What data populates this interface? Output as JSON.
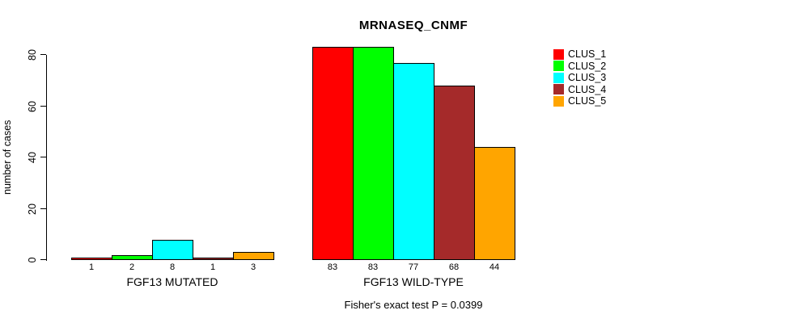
{
  "chart_data": {
    "type": "bar",
    "title": "MRNASEQ_CNMF",
    "subtitle": "Fisher's exact test P = 0.0399",
    "xlabel": "",
    "ylabel": "number of cases",
    "ylim": [
      0,
      80
    ],
    "yticks": [
      0,
      20,
      40,
      60,
      80
    ],
    "grid": false,
    "bar_border_color": "#000000",
    "colors": [
      "#FF0000",
      "#00FF00",
      "#00FFFF",
      "#A52A2A",
      "#FFA500"
    ],
    "series_labels": [
      "CLUS_1",
      "CLUS_2",
      "CLUS_3",
      "CLUS_4",
      "CLUS_5"
    ],
    "groups": [
      {
        "label": "FGF13 MUTATED",
        "values": [
          1,
          2,
          8,
          1,
          3
        ]
      },
      {
        "label": "FGF13 WILD-TYPE",
        "values": [
          83,
          83,
          77,
          68,
          44
        ]
      }
    ],
    "legend": {
      "position": "right",
      "entries": [
        {
          "label": "CLUS_1",
          "color": "#FF0000"
        },
        {
          "label": "CLUS_2",
          "color": "#00FF00"
        },
        {
          "label": "CLUS_3",
          "color": "#00FFFF"
        },
        {
          "label": "CLUS_4",
          "color": "#A52A2A"
        },
        {
          "label": "CLUS_5",
          "color": "#FFA500"
        }
      ]
    }
  }
}
